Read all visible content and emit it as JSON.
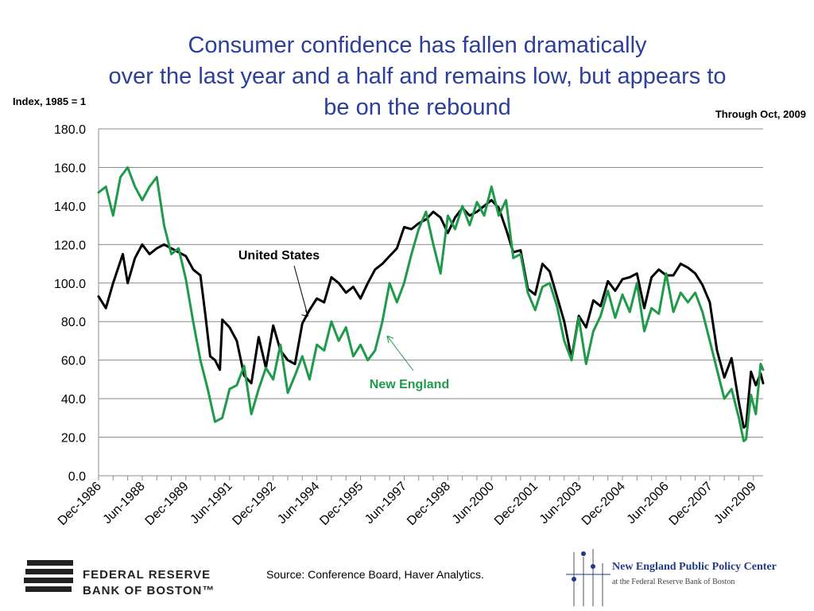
{
  "title_lines": [
    "Consumer confidence has fallen dramatically",
    "over the last year and a half and remains low, but appears to",
    "be on the rebound"
  ],
  "unit_note": "Index, 1985 = 1",
  "through_note": "Through Oct, 2009",
  "footer": {
    "source": "Source: Conference Board, Haver Analytics.",
    "frb_logo_text": [
      "FEDERAL RESERVE",
      "BANK OF BOSTON™"
    ],
    "neppc_title": "New England Public Policy Center",
    "neppc_subtitle": "at the Federal Reserve Bank of Boston"
  },
  "chart_data": {
    "type": "line",
    "title": "",
    "xlabel": "",
    "ylabel": "",
    "ylim": [
      0,
      180
    ],
    "yticks": [
      "0.0",
      "20.0",
      "40.0",
      "60.0",
      "80.0",
      "100.0",
      "120.0",
      "140.0",
      "160.0",
      "180.0"
    ],
    "xlim": [
      "1986-12",
      "2009-10"
    ],
    "xtick_labels": [
      "Dec-1986",
      "Jun-1988",
      "Dec-1989",
      "Jun-1991",
      "Dec-1992",
      "Jun-1994",
      "Dec-1995",
      "Jun-1997",
      "Dec-1998",
      "Jun-2000",
      "Dec-2001",
      "Jun-2003",
      "Dec-2004",
      "Jun-2006",
      "Dec-2007",
      "Jun-2009"
    ],
    "grid": "horizontal",
    "series": [
      {
        "name": "United States",
        "color": "#000000",
        "points": [
          [
            "1986-12",
            93
          ],
          [
            "1987-03",
            87
          ],
          [
            "1987-06",
            100
          ],
          [
            "1987-10",
            115
          ],
          [
            "1987-12",
            100
          ],
          [
            "1988-03",
            113
          ],
          [
            "1988-06",
            120
          ],
          [
            "1988-09",
            115
          ],
          [
            "1988-12",
            118
          ],
          [
            "1989-03",
            120
          ],
          [
            "1989-06",
            118
          ],
          [
            "1989-09",
            116
          ],
          [
            "1989-12",
            114
          ],
          [
            "1990-03",
            107
          ],
          [
            "1990-06",
            104
          ],
          [
            "1990-08",
            84
          ],
          [
            "1990-10",
            62
          ],
          [
            "1990-12",
            60
          ],
          [
            "1991-02",
            55
          ],
          [
            "1991-03",
            81
          ],
          [
            "1991-06",
            77
          ],
          [
            "1991-09",
            70
          ],
          [
            "1991-12",
            52
          ],
          [
            "1992-03",
            48
          ],
          [
            "1992-06",
            72
          ],
          [
            "1992-09",
            56
          ],
          [
            "1992-12",
            78
          ],
          [
            "1993-03",
            65
          ],
          [
            "1993-06",
            60
          ],
          [
            "1993-09",
            58
          ],
          [
            "1993-12",
            79
          ],
          [
            "1994-03",
            86
          ],
          [
            "1994-06",
            92
          ],
          [
            "1994-09",
            90
          ],
          [
            "1994-12",
            103
          ],
          [
            "1995-03",
            100
          ],
          [
            "1995-06",
            95
          ],
          [
            "1995-09",
            98
          ],
          [
            "1995-12",
            92
          ],
          [
            "1996-03",
            100
          ],
          [
            "1996-06",
            107
          ],
          [
            "1996-09",
            110
          ],
          [
            "1996-12",
            114
          ],
          [
            "1997-03",
            118
          ],
          [
            "1997-06",
            129
          ],
          [
            "1997-09",
            128
          ],
          [
            "1997-12",
            131
          ],
          [
            "1998-03",
            133
          ],
          [
            "1998-06",
            137
          ],
          [
            "1998-09",
            134
          ],
          [
            "1998-12",
            126
          ],
          [
            "1999-03",
            134
          ],
          [
            "1999-06",
            139
          ],
          [
            "1999-09",
            135
          ],
          [
            "1999-12",
            137
          ],
          [
            "2000-03",
            140
          ],
          [
            "2000-06",
            143
          ],
          [
            "2000-09",
            139
          ],
          [
            "2000-12",
            128
          ],
          [
            "2001-03",
            116
          ],
          [
            "2001-06",
            117
          ],
          [
            "2001-09",
            97
          ],
          [
            "2001-12",
            94
          ],
          [
            "2002-03",
            110
          ],
          [
            "2002-06",
            106
          ],
          [
            "2002-09",
            93
          ],
          [
            "2002-12",
            80
          ],
          [
            "2003-03",
            61
          ],
          [
            "2003-06",
            83
          ],
          [
            "2003-09",
            77
          ],
          [
            "2003-12",
            91
          ],
          [
            "2004-03",
            88
          ],
          [
            "2004-06",
            101
          ],
          [
            "2004-09",
            96
          ],
          [
            "2004-12",
            102
          ],
          [
            "2005-03",
            103
          ],
          [
            "2005-06",
            105
          ],
          [
            "2005-09",
            87
          ],
          [
            "2005-12",
            103
          ],
          [
            "2006-03",
            107
          ],
          [
            "2006-06",
            104
          ],
          [
            "2006-09",
            104
          ],
          [
            "2006-12",
            110
          ],
          [
            "2007-03",
            108
          ],
          [
            "2007-06",
            105
          ],
          [
            "2007-09",
            99
          ],
          [
            "2007-12",
            90
          ],
          [
            "2008-03",
            65
          ],
          [
            "2008-06",
            51
          ],
          [
            "2008-09",
            61
          ],
          [
            "2008-12",
            38
          ],
          [
            "2009-02",
            25
          ],
          [
            "2009-03",
            26
          ],
          [
            "2009-05",
            54
          ],
          [
            "2009-07",
            47
          ],
          [
            "2009-09",
            53
          ],
          [
            "2009-10",
            48
          ]
        ]
      },
      {
        "name": "New England",
        "color": "#1f9a4a",
        "points": [
          [
            "1986-12",
            147
          ],
          [
            "1987-03",
            150
          ],
          [
            "1987-06",
            135
          ],
          [
            "1987-09",
            155
          ],
          [
            "1987-12",
            160
          ],
          [
            "1988-03",
            150
          ],
          [
            "1988-06",
            143
          ],
          [
            "1988-09",
            150
          ],
          [
            "1988-12",
            155
          ],
          [
            "1989-03",
            130
          ],
          [
            "1989-06",
            115
          ],
          [
            "1989-09",
            118
          ],
          [
            "1989-12",
            102
          ],
          [
            "1990-03",
            80
          ],
          [
            "1990-06",
            60
          ],
          [
            "1990-09",
            45
          ],
          [
            "1990-12",
            28
          ],
          [
            "1991-03",
            30
          ],
          [
            "1991-06",
            45
          ],
          [
            "1991-09",
            47
          ],
          [
            "1991-12",
            57
          ],
          [
            "1992-03",
            32
          ],
          [
            "1992-06",
            45
          ],
          [
            "1992-09",
            56
          ],
          [
            "1992-12",
            50
          ],
          [
            "1993-03",
            68
          ],
          [
            "1993-06",
            43
          ],
          [
            "1993-09",
            52
          ],
          [
            "1993-12",
            62
          ],
          [
            "1994-03",
            50
          ],
          [
            "1994-06",
            68
          ],
          [
            "1994-09",
            65
          ],
          [
            "1994-12",
            80
          ],
          [
            "1995-03",
            70
          ],
          [
            "1995-06",
            77
          ],
          [
            "1995-09",
            62
          ],
          [
            "1995-12",
            68
          ],
          [
            "1996-03",
            60
          ],
          [
            "1996-06",
            65
          ],
          [
            "1996-09",
            80
          ],
          [
            "1996-12",
            100
          ],
          [
            "1997-03",
            90
          ],
          [
            "1997-06",
            100
          ],
          [
            "1997-09",
            115
          ],
          [
            "1997-12",
            128
          ],
          [
            "1998-03",
            137
          ],
          [
            "1998-06",
            120
          ],
          [
            "1998-09",
            105
          ],
          [
            "1998-12",
            135
          ],
          [
            "1999-03",
            128
          ],
          [
            "1999-06",
            140
          ],
          [
            "1999-09",
            130
          ],
          [
            "1999-12",
            142
          ],
          [
            "2000-03",
            135
          ],
          [
            "2000-06",
            150
          ],
          [
            "2000-09",
            135
          ],
          [
            "2000-12",
            143
          ],
          [
            "2001-03",
            113
          ],
          [
            "2001-06",
            115
          ],
          [
            "2001-09",
            95
          ],
          [
            "2001-12",
            86
          ],
          [
            "2002-03",
            98
          ],
          [
            "2002-06",
            100
          ],
          [
            "2002-09",
            88
          ],
          [
            "2002-12",
            70
          ],
          [
            "2003-03",
            60
          ],
          [
            "2003-06",
            82
          ],
          [
            "2003-09",
            58
          ],
          [
            "2003-12",
            75
          ],
          [
            "2004-03",
            83
          ],
          [
            "2004-06",
            96
          ],
          [
            "2004-09",
            82
          ],
          [
            "2004-12",
            94
          ],
          [
            "2005-03",
            85
          ],
          [
            "2005-06",
            100
          ],
          [
            "2005-09",
            75
          ],
          [
            "2005-12",
            87
          ],
          [
            "2006-03",
            84
          ],
          [
            "2006-06",
            105
          ],
          [
            "2006-09",
            85
          ],
          [
            "2006-12",
            95
          ],
          [
            "2007-03",
            90
          ],
          [
            "2007-06",
            95
          ],
          [
            "2007-09",
            85
          ],
          [
            "2007-12",
            70
          ],
          [
            "2008-03",
            55
          ],
          [
            "2008-06",
            40
          ],
          [
            "2008-09",
            45
          ],
          [
            "2008-12",
            30
          ],
          [
            "2009-02",
            18
          ],
          [
            "2009-03",
            19
          ],
          [
            "2009-05",
            42
          ],
          [
            "2009-07",
            32
          ],
          [
            "2009-09",
            58
          ],
          [
            "2009-10",
            55
          ]
        ]
      }
    ],
    "annotations": [
      {
        "text": "United States",
        "color": "#000000",
        "points_to": "United States"
      },
      {
        "text": "New England",
        "color": "#1f9a4a",
        "points_to": "New England"
      }
    ]
  }
}
